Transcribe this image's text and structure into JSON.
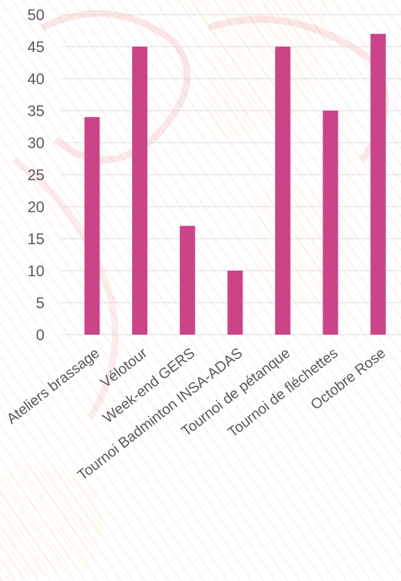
{
  "chart_data": {
    "type": "bar",
    "categories": [
      "Ateliers brassage",
      "Vélotour",
      "Week-end GERS",
      "Tournoi Badminton INSA-ADAS",
      "Tournoi de pétanque",
      "Tournoi de fléchettes",
      "Octobre Rose"
    ],
    "values": [
      34,
      45,
      17,
      10,
      45,
      35,
      47
    ],
    "ylim": [
      0,
      50
    ],
    "yticks": [
      0,
      5,
      10,
      15,
      20,
      25,
      30,
      35,
      40,
      45,
      50
    ],
    "grid": true,
    "bar_color": "#cc4488",
    "title": "",
    "xlabel": "",
    "ylabel": ""
  },
  "colors": {
    "background_pattern_red": "#f0a0a0",
    "background_pattern_yellow": "#f5f09a"
  }
}
